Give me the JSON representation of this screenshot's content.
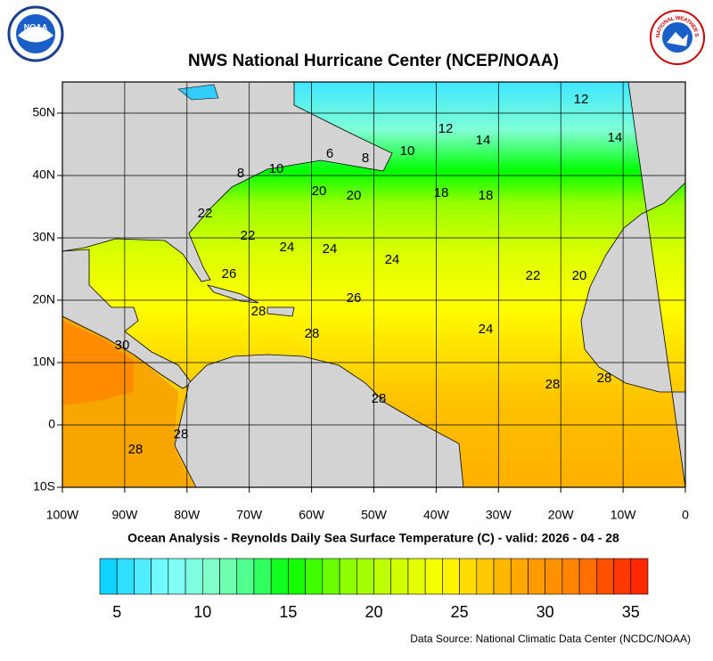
{
  "header": {
    "title": "NWS National Hurricane Center (NCEP/NOAA)",
    "noaa_logo": "NOAA",
    "nws_logo": "NATIONAL WEATHER SERVICE"
  },
  "map": {
    "xlim": [
      -100,
      0
    ],
    "ylim": [
      -10,
      55
    ],
    "xticks": [
      {
        "value": -100,
        "label": "100W"
      },
      {
        "value": -90,
        "label": "90W"
      },
      {
        "value": -80,
        "label": "80W"
      },
      {
        "value": -70,
        "label": "70W"
      },
      {
        "value": -60,
        "label": "60W"
      },
      {
        "value": -50,
        "label": "50W"
      },
      {
        "value": -40,
        "label": "40W"
      },
      {
        "value": -30,
        "label": "30W"
      },
      {
        "value": -20,
        "label": "20W"
      },
      {
        "value": -10,
        "label": "10W"
      },
      0
    ],
    "yticks": [
      {
        "value": -10,
        "label": "10S"
      },
      0,
      {
        "value": 10,
        "label": "10N"
      },
      {
        "value": 20,
        "label": "20N"
      },
      {
        "value": 30,
        "label": "30N"
      },
      {
        "value": 40,
        "label": "40N"
      },
      {
        "value": 50,
        "label": "50N"
      }
    ],
    "grid": true,
    "contour_labels": [
      12,
      12,
      14,
      14,
      10,
      8,
      6,
      8,
      10,
      20,
      20,
      18,
      18,
      22,
      22,
      24,
      24,
      24,
      26,
      26,
      22,
      20,
      28,
      28,
      24,
      30,
      28,
      28,
      28,
      28,
      28
    ]
  },
  "subtitle": "Ocean Analysis - Reynolds Daily Sea Surface Temperature (C) - valid: 2026 - 04 - 28",
  "colorbar": {
    "lim": [
      4,
      36
    ],
    "ticks": [
      5,
      10,
      15,
      20,
      25,
      30,
      35
    ]
  },
  "source": "Data Source: National Climatic Data Center (NCDC/NOAA)"
}
